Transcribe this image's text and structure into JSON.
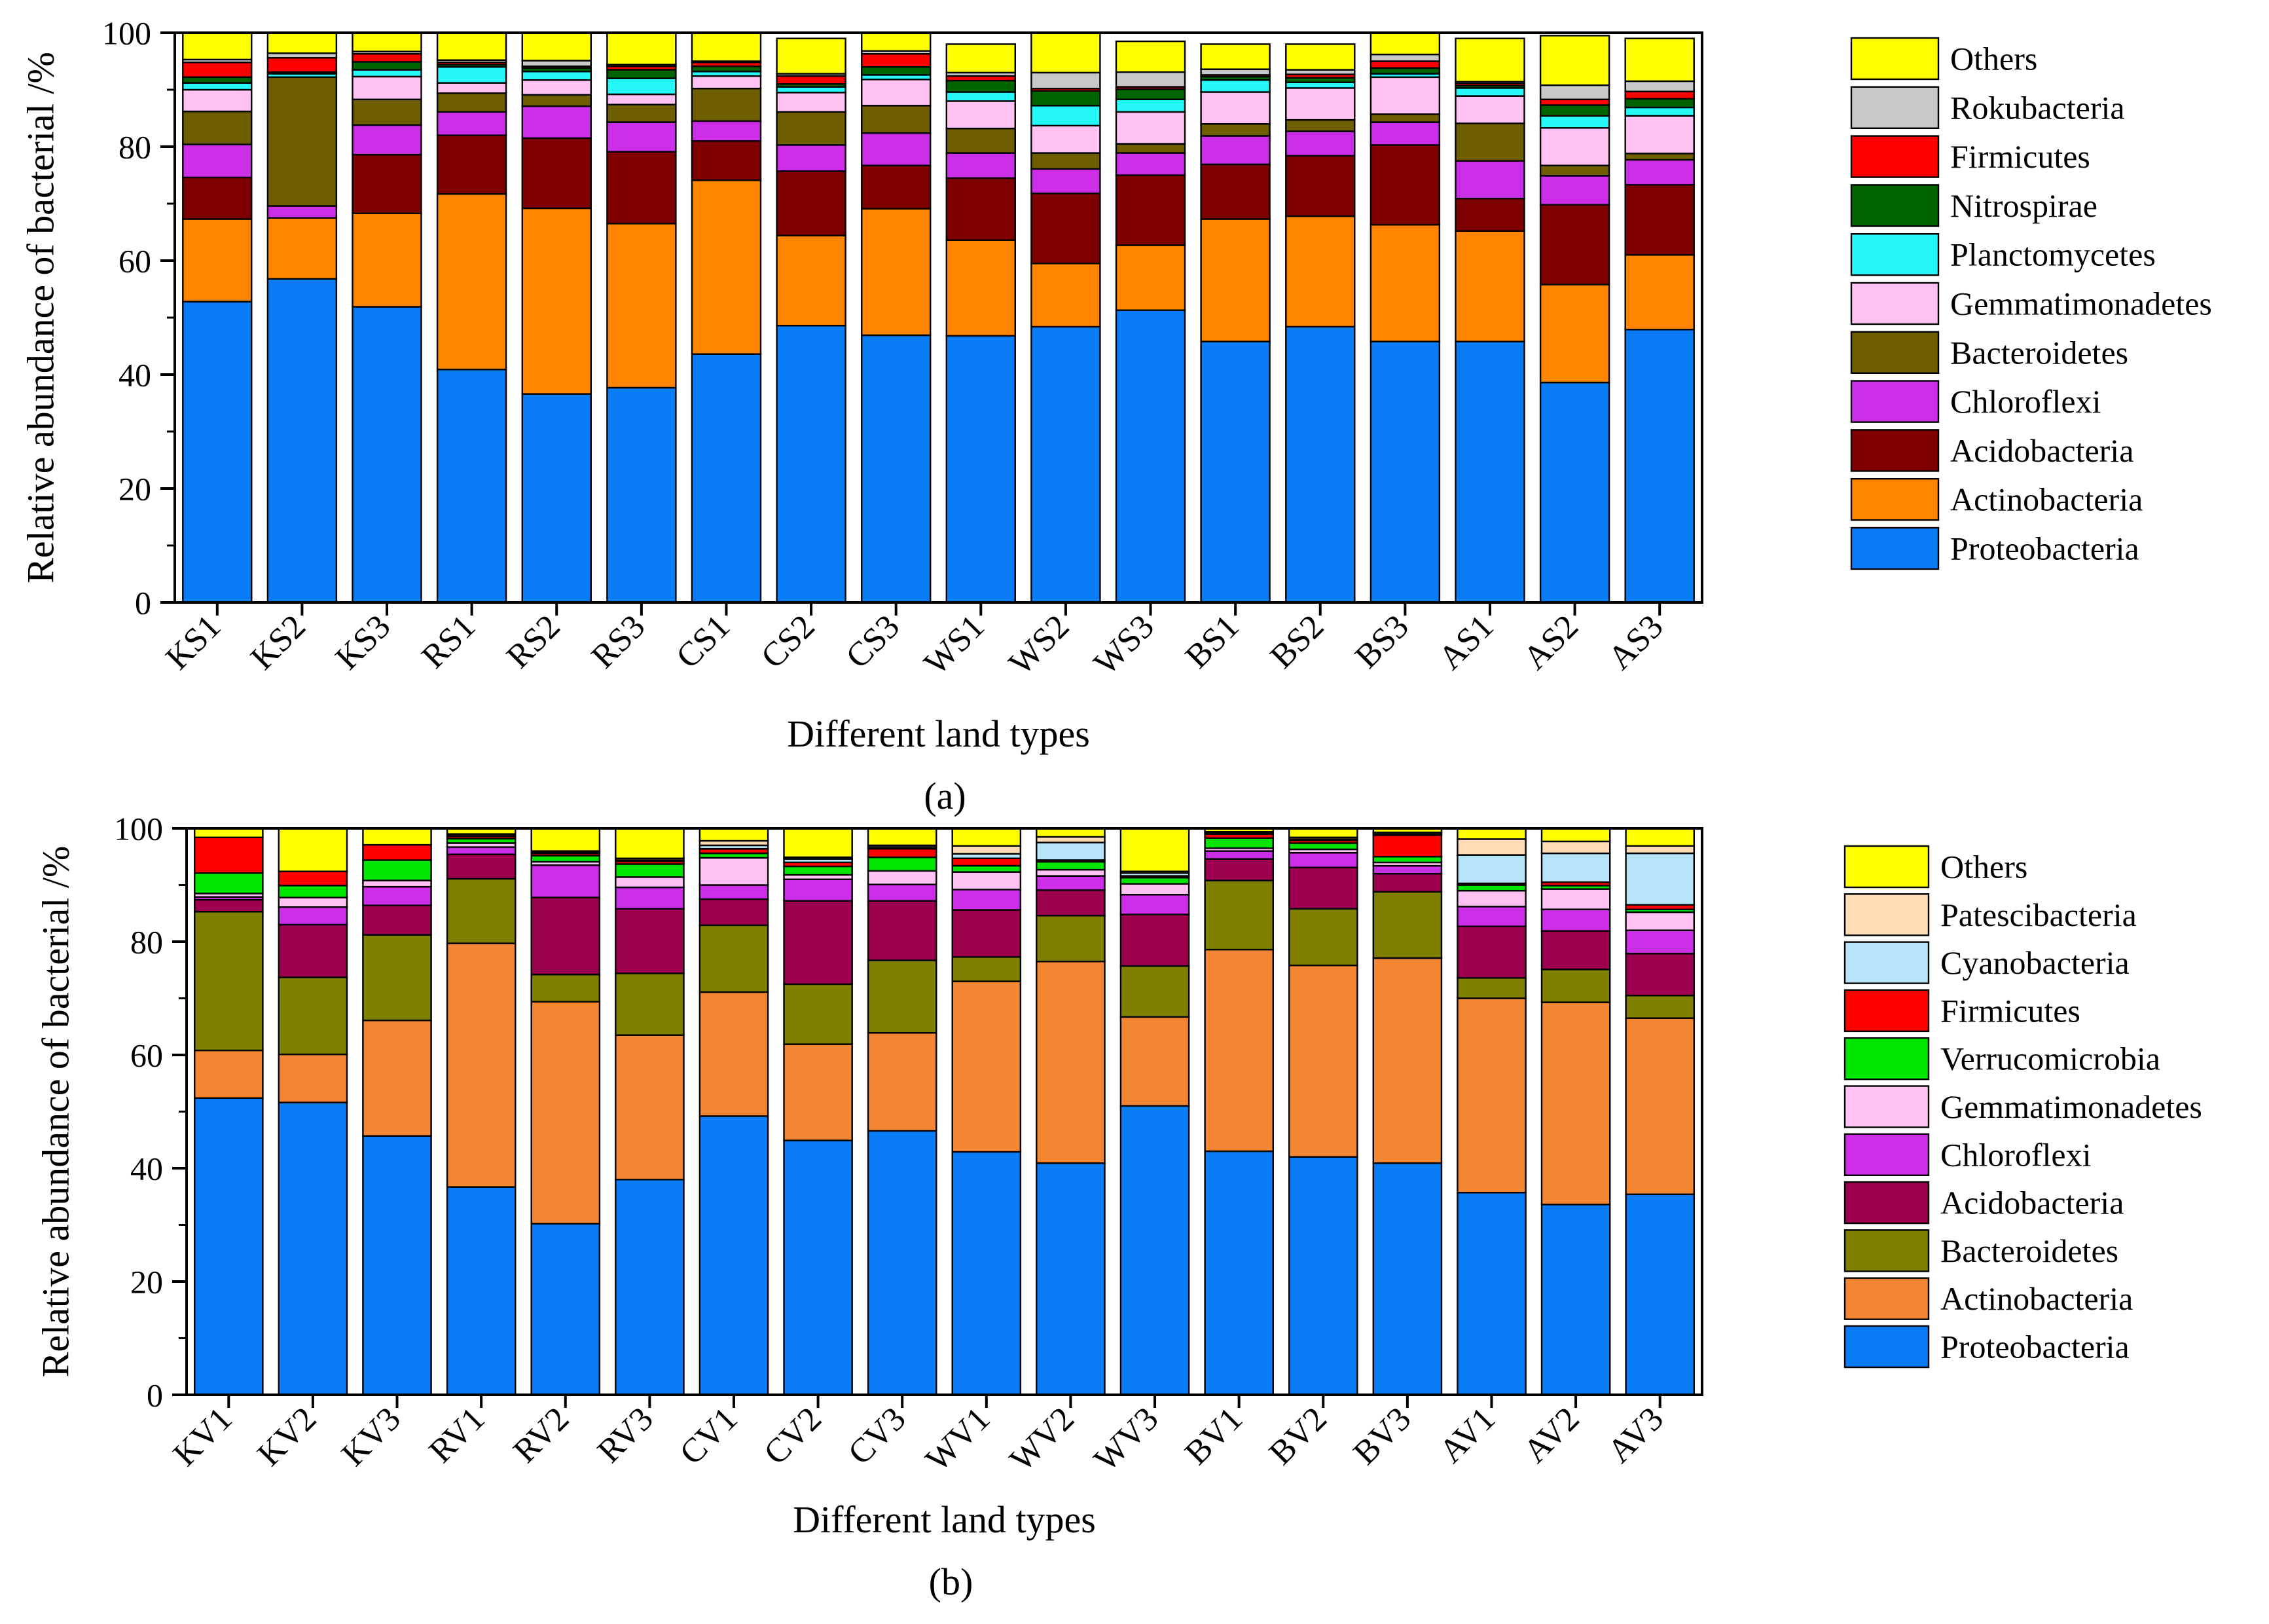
{
  "chart_data": [
    {
      "id": "a",
      "type": "bar",
      "stacked": true,
      "caption": "(a)",
      "xlabel": "Different land types",
      "ylabel": "Relative abundance of bacterial /%",
      "ylim": [
        0,
        100
      ],
      "yticks": [
        0,
        20,
        40,
        60,
        80,
        100
      ],
      "categories": [
        "KS1",
        "KS2",
        "KS3",
        "RS1",
        "RS2",
        "RS3",
        "CS1",
        "CS2",
        "CS3",
        "WS1",
        "WS2",
        "WS3",
        "BS1",
        "BS2",
        "BS3",
        "AS1",
        "AS2",
        "AS3"
      ],
      "series": [
        {
          "name": "Proteobacteria",
          "color": "#0a7cf5",
          "values": [
            52.8,
            56.8,
            51.9,
            40.9,
            36.6,
            37.7,
            43.6,
            48.6,
            46.9,
            46.8,
            48.4,
            51.3,
            45.8,
            48.4,
            45.8,
            45.8,
            38.6,
            47.9
          ]
        },
        {
          "name": "Actinobacteria",
          "color": "#ff8500",
          "values": [
            14.5,
            10.7,
            16.4,
            30.8,
            32.6,
            28.8,
            30.5,
            15.8,
            22.2,
            16.8,
            11.1,
            11.4,
            21.5,
            19.4,
            20.5,
            19.4,
            17.2,
            13.1
          ]
        },
        {
          "name": "Acidobacteria",
          "color": "#7f0000",
          "values": [
            7.3,
            0.0,
            10.3,
            10.3,
            12.3,
            12.6,
            6.9,
            11.3,
            7.6,
            10.9,
            12.3,
            12.3,
            9.6,
            10.6,
            14.0,
            5.7,
            14.0,
            12.3
          ]
        },
        {
          "name": "Chloroflexi",
          "color": "#cc2ee8",
          "values": [
            5.8,
            2.1,
            5.2,
            4.1,
            5.6,
            5.2,
            3.5,
            4.6,
            5.7,
            4.4,
            4.3,
            3.9,
            5.0,
            4.3,
            4.0,
            6.6,
            5.1,
            4.4
          ]
        },
        {
          "name": "Bacteroidetes",
          "color": "#6f5e00",
          "values": [
            5.8,
            22.6,
            4.5,
            3.3,
            2.0,
            3.1,
            5.7,
            5.8,
            4.8,
            4.3,
            2.8,
            1.6,
            2.1,
            2.0,
            1.4,
            6.6,
            1.8,
            1.1
          ]
        },
        {
          "name": "Gemmatimonadetes",
          "color": "#ffc2f2",
          "values": [
            3.8,
            0.0,
            4.0,
            1.8,
            2.6,
            1.8,
            2.2,
            3.4,
            4.6,
            4.8,
            4.8,
            5.6,
            5.6,
            5.6,
            6.5,
            4.8,
            6.6,
            6.6
          ]
        },
        {
          "name": "Planctomycetes",
          "color": "#26f7f7",
          "values": [
            1.2,
            0.6,
            1.2,
            2.8,
            1.5,
            2.8,
            0.8,
            1.0,
            0.8,
            1.6,
            3.5,
            2.2,
            2.1,
            1.0,
            0.6,
            1.4,
            2.1,
            1.5
          ]
        },
        {
          "name": "Nitrospirae",
          "color": "#006400",
          "values": [
            1.0,
            0.3,
            1.4,
            0.4,
            0.6,
            1.5,
            0.9,
            0.5,
            1.4,
            2.0,
            2.6,
            1.8,
            0.6,
            0.8,
            1.0,
            0.4,
            1.9,
            1.5
          ]
        },
        {
          "name": "Firmicutes",
          "color": "#ff0000",
          "values": [
            2.6,
            2.5,
            1.4,
            0.4,
            0.3,
            0.6,
            0.7,
            1.4,
            2.3,
            0.8,
            0.4,
            0.4,
            0.3,
            0.6,
            1.2,
            0.4,
            1.0,
            1.3
          ]
        },
        {
          "name": "Rokubacteria",
          "color": "#c8c8c8",
          "values": [
            0.5,
            0.8,
            0.4,
            0.4,
            1.0,
            0.3,
            0.2,
            0.4,
            0.5,
            0.6,
            2.8,
            2.6,
            1.0,
            0.8,
            1.2,
            0.3,
            2.5,
            1.8
          ]
        },
        {
          "name": "Others",
          "color": "#ffff00",
          "values": [
            4.7,
            3.6,
            3.3,
            4.8,
            4.9,
            5.6,
            5.0,
            6.2,
            3.2,
            5.0,
            7.0,
            5.4,
            4.4,
            4.5,
            3.8,
            7.6,
            8.7,
            7.5
          ]
        }
      ]
    },
    {
      "id": "b",
      "type": "bar",
      "stacked": true,
      "caption": "(b)",
      "xlabel": "Different land types",
      "ylabel": "Relative abundance of bacterial /%",
      "ylim": [
        0,
        100
      ],
      "yticks": [
        0,
        20,
        40,
        60,
        80,
        100
      ],
      "categories": [
        "KV1",
        "KV2",
        "KV3",
        "RV1",
        "RV2",
        "RV3",
        "CV1",
        "CV2",
        "CV3",
        "WV1",
        "WV2",
        "WV3",
        "BV1",
        "BV2",
        "BV3",
        "AV1",
        "AV2",
        "AV3"
      ],
      "series": [
        {
          "name": "Proteobacteria",
          "color": "#0a7cf5",
          "values": [
            52.4,
            51.6,
            45.7,
            36.7,
            30.2,
            38.0,
            49.2,
            44.9,
            46.6,
            42.9,
            40.9,
            51.0,
            43.0,
            42.0,
            40.9,
            35.7,
            33.6,
            35.4
          ]
        },
        {
          "name": "Actinobacteria",
          "color": "#f28633",
          "values": [
            8.4,
            8.5,
            20.4,
            43.0,
            39.2,
            25.5,
            21.9,
            17.0,
            17.3,
            30.1,
            35.6,
            15.7,
            35.6,
            33.8,
            36.2,
            34.3,
            35.7,
            31.1
          ]
        },
        {
          "name": "Bacteroidetes",
          "color": "#7f7f00",
          "values": [
            24.5,
            13.6,
            15.1,
            11.4,
            4.8,
            10.9,
            11.8,
            10.6,
            12.8,
            4.3,
            8.1,
            9.0,
            12.2,
            10.0,
            11.7,
            3.6,
            5.8,
            4.0
          ]
        },
        {
          "name": "Acidobacteria",
          "color": "#9c004f",
          "values": [
            2.1,
            9.3,
            5.2,
            4.3,
            13.6,
            11.4,
            4.6,
            14.7,
            10.5,
            8.3,
            4.5,
            9.1,
            3.8,
            7.3,
            3.2,
            9.1,
            6.8,
            7.4
          ]
        },
        {
          "name": "Chloroflexi",
          "color": "#cc2ee8",
          "values": [
            0.5,
            3.1,
            3.3,
            1.3,
            5.7,
            3.8,
            2.5,
            3.8,
            2.9,
            3.6,
            2.5,
            3.5,
            1.4,
            2.6,
            1.4,
            3.5,
            3.8,
            4.1
          ]
        },
        {
          "name": "Gemmatimonadetes",
          "color": "#ffc2f2",
          "values": [
            0.6,
            1.7,
            1.1,
            0.7,
            0.6,
            1.8,
            4.8,
            0.8,
            2.4,
            3.1,
            1.1,
            1.9,
            0.5,
            0.6,
            0.6,
            2.8,
            3.6,
            3.2
          ]
        },
        {
          "name": "Verrucomicrobia",
          "color": "#00e600",
          "values": [
            3.6,
            2.1,
            3.6,
            0.8,
            1.1,
            2.3,
            0.8,
            1.5,
            2.4,
            1.1,
            1.4,
            1.1,
            1.8,
            1.1,
            1.0,
            1.0,
            0.6,
            0.5
          ]
        },
        {
          "name": "Firmicutes",
          "color": "#ff0000",
          "values": [
            6.3,
            2.5,
            2.7,
            0.4,
            0.4,
            0.5,
            0.8,
            0.7,
            1.5,
            1.3,
            0.3,
            0.3,
            0.7,
            0.5,
            3.8,
            0.3,
            0.6,
            0.8
          ]
        },
        {
          "name": "Cyanobacteria",
          "color": "#b7e4f8",
          "values": [
            0.0,
            0.0,
            0.0,
            0.2,
            0.2,
            0.2,
            0.6,
            0.6,
            0.3,
            0.8,
            3.1,
            0.5,
            0.2,
            0.2,
            0.2,
            5.0,
            5.1,
            9.1
          ]
        },
        {
          "name": "Patescibacteria",
          "color": "#ffdcb6",
          "values": [
            0.0,
            0.0,
            0.0,
            0.2,
            0.2,
            0.3,
            0.8,
            0.3,
            0.3,
            1.4,
            1.0,
            0.3,
            0.2,
            0.3,
            0.3,
            2.8,
            2.1,
            1.3
          ]
        },
        {
          "name": "Others",
          "color": "#ffff00",
          "values": [
            1.6,
            7.6,
            2.9,
            1.0,
            4.0,
            5.3,
            2.2,
            5.1,
            3.0,
            3.1,
            1.5,
            7.6,
            0.6,
            1.6,
            0.7,
            1.9,
            2.3,
            3.1
          ]
        }
      ]
    }
  ]
}
